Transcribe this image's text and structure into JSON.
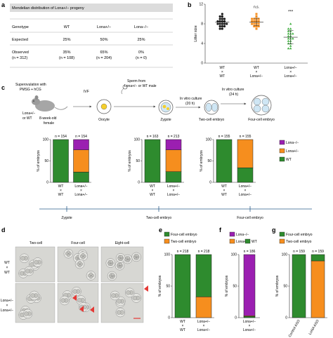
{
  "panel_labels": {
    "a": "a",
    "b": "b",
    "c": "c",
    "d": "d",
    "e": "e",
    "f": "f",
    "g": "g"
  },
  "table": {
    "title": "Mendelian distribution of Lona+/− progeny",
    "headers": [
      "Genotype",
      "WT",
      "Lona+/−",
      "Lona−/−"
    ],
    "rows": [
      {
        "label": "Expected",
        "cells": [
          "25%",
          "50%",
          "25%"
        ]
      },
      {
        "label": "Observed",
        "sublabel": "(n = 312)",
        "cells": [
          "35%",
          "65%",
          "0%"
        ],
        "subcells": [
          "(n = 108)",
          "(n = 204)",
          "(n = 0)"
        ]
      }
    ]
  },
  "schematic": {
    "superovulation": "Superovulation with",
    "hormones": "PMSG + hCG",
    "female_genotype": "Lona+/−",
    "female_genotype2": "or WT",
    "female_age": "8-week-old",
    "female_word": "female",
    "ivf": "IVF",
    "sperm1": "Sperm from",
    "sperm2": "Lona+/− or WT male",
    "oocyte": "Oocyte",
    "zygote": "Zygote",
    "culture1": "In vitro culture",
    "culture1_time": "(20 h)",
    "culture2": "In vitro culture",
    "culture2_time": "(24 h)",
    "two_cell": "Two-cell embryo",
    "four_cell": "Four-cell embryo"
  },
  "timeline": {
    "labels": [
      "Zygote",
      "Two-cell embryo",
      "Four-cell embryo"
    ]
  },
  "micrographs": {
    "col_labels": [
      "Two-cell",
      "Four-cell",
      "Eight-cell"
    ],
    "row_labels": [
      [
        "WT",
        "×",
        "WT"
      ],
      [
        "Lona+/−",
        "×",
        "Lona+/−"
      ]
    ]
  },
  "colors": {
    "green": "#2e8b2e",
    "orange": "#f68e1e",
    "purple": "#9b1fb1",
    "black": "#1a1a1a",
    "dotgreen": "#3fae3f"
  },
  "chart_data": [
    {
      "id": "b",
      "type": "scatter",
      "ylabel": "Litter size",
      "ylim": [
        0,
        12
      ],
      "yticks": [
        0,
        4,
        8,
        12
      ],
      "categories": [
        [
          "WT",
          "×",
          "WT"
        ],
        [
          "WT",
          "×",
          "Lona+/−"
        ],
        [
          "Lona+/−",
          "×",
          "Lona+/−"
        ]
      ],
      "series": [
        {
          "values": [
            9,
            9,
            9,
            8.5,
            8.5,
            8.5,
            8,
            8,
            8,
            8,
            7.5,
            7.5,
            7.5,
            7,
            7,
            10,
            9.5,
            9.5,
            8,
            8.5
          ]
        },
        {
          "values": [
            10,
            9.5,
            9,
            9,
            9,
            8.5,
            8.5,
            8.5,
            8,
            8,
            8,
            7.5,
            7.5,
            7,
            7.5,
            9,
            8.5,
            8
          ]
        },
        {
          "values": [
            8,
            7,
            7,
            6.5,
            6.5,
            6,
            6,
            6,
            5.5,
            5.5,
            5,
            5,
            5,
            4.5,
            4.5,
            4,
            4,
            3.5,
            3,
            3
          ]
        }
      ],
      "annotations": [
        "n.s.",
        "***"
      ]
    },
    {
      "id": "c1",
      "type": "bar",
      "ylabel": "% of embryos",
      "ylim": [
        0,
        100
      ],
      "yticks": [
        0,
        50,
        100
      ],
      "categories": [
        [
          "WT",
          "×",
          "WT"
        ],
        [
          "Lona+/−",
          "×",
          "Lona+/−"
        ]
      ],
      "n_labels": [
        "n = 154",
        "n = 154"
      ],
      "series": [
        {
          "key": "green",
          "values": [
            100,
            24
          ]
        },
        {
          "key": "orange",
          "values": [
            0,
            52
          ]
        },
        {
          "key": "purple",
          "values": [
            0,
            24
          ]
        }
      ]
    },
    {
      "id": "c2",
      "type": "bar",
      "ylabel": "% of embryos",
      "ylim": [
        0,
        100
      ],
      "yticks": [
        0,
        50,
        100
      ],
      "categories": [
        [
          "WT",
          "×",
          "WT"
        ],
        [
          "Lona+/−",
          "×",
          "Lona+/−"
        ]
      ],
      "n_labels": [
        "n = 163",
        "n = 213"
      ],
      "series": [
        {
          "key": "green",
          "values": [
            100,
            25
          ]
        },
        {
          "key": "orange",
          "values": [
            0,
            51
          ]
        },
        {
          "key": "purple",
          "values": [
            0,
            24
          ]
        }
      ]
    },
    {
      "id": "c3",
      "type": "bar",
      "ylabel": "% of embryos",
      "ylim": [
        0,
        100
      ],
      "yticks": [
        0,
        50,
        100
      ],
      "categories": [
        [
          "WT",
          "×",
          "WT"
        ],
        [
          "Lona+/−",
          "×",
          "Lona+/−"
        ]
      ],
      "n_labels": [
        "n = 155",
        "n = 155"
      ],
      "legend": [
        "Lona−/−",
        "Lona+/−",
        "WT"
      ],
      "series": [
        {
          "key": "green",
          "values": [
            100,
            34
          ]
        },
        {
          "key": "orange",
          "values": [
            0,
            66
          ]
        },
        {
          "key": "purple",
          "values": [
            0,
            0
          ]
        }
      ]
    },
    {
      "id": "e",
      "type": "bar",
      "ylabel": "% of embryos",
      "ylim": [
        0,
        100
      ],
      "yticks": [
        0,
        50,
        100
      ],
      "categories": [
        [
          "WT",
          "×",
          "WT"
        ],
        [
          "Lona+/−",
          "×",
          "Lona+/−"
        ]
      ],
      "n_labels": [
        "n = 218",
        "n = 218"
      ],
      "legend": [
        "Four-cell embryo",
        "Two-cell embryo"
      ],
      "series": [
        {
          "key": "orange",
          "values": [
            0,
            33
          ]
        },
        {
          "key": "green",
          "values": [
            100,
            67
          ]
        }
      ]
    },
    {
      "id": "f",
      "type": "bar",
      "ylabel": "% of embryos",
      "ylim": [
        0,
        100
      ],
      "yticks": [
        0,
        50,
        100
      ],
      "categories": [
        [
          "Lona+/−",
          "×",
          "Lona+/−"
        ]
      ],
      "n_labels": [
        "n = 186"
      ],
      "legend": [
        "Lona−/−",
        "Lona+/−",
        "WT"
      ],
      "series": [
        {
          "key": "green",
          "values": [
            2
          ]
        },
        {
          "key": "orange",
          "values": [
            1
          ]
        },
        {
          "key": "purple",
          "values": [
            97
          ]
        }
      ]
    },
    {
      "id": "g",
      "type": "bar",
      "ylabel": "% of embryos",
      "ylim": [
        0,
        100
      ],
      "yticks": [
        0,
        50,
        100
      ],
      "categories": [
        [
          "Control ASO"
        ],
        [
          "LoNA ASO"
        ]
      ],
      "n_labels": [
        "n = 159",
        "n = 159"
      ],
      "legend": [
        "Four-cell embryo",
        "Two-cell embryo"
      ],
      "series": [
        {
          "key": "orange",
          "values": [
            0,
            90
          ]
        },
        {
          "key": "green",
          "values": [
            100,
            10
          ]
        }
      ]
    }
  ]
}
